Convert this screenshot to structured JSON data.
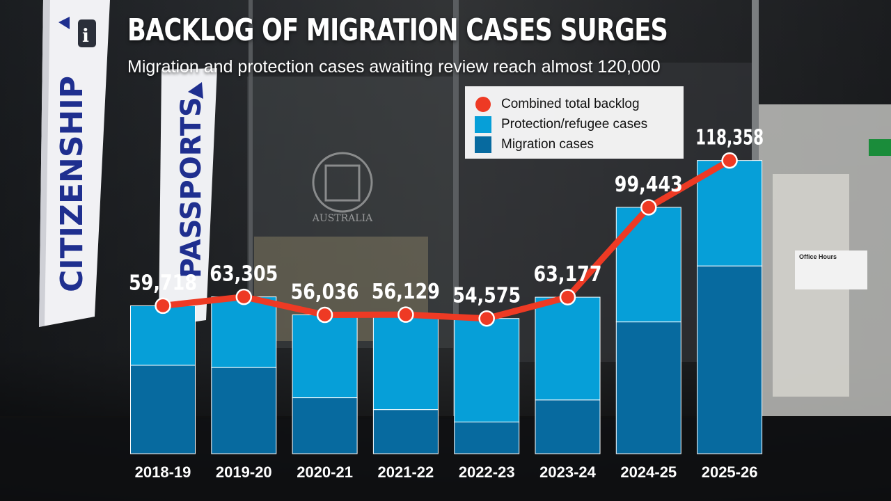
{
  "headline": "BACKLOG OF MIGRATION CASES SURGES",
  "subtitle": "Migration and protection cases awaiting review reach almost 120,000",
  "colors": {
    "combined": "#ee3a24",
    "protection": "#069fd8",
    "migration": "#076a9f"
  },
  "background": {
    "signs": [
      "CITIZENSHIP",
      "PASSPORTS"
    ],
    "crest_text": "AUSTRALIA",
    "notice_title": "Office Hours"
  },
  "chart_data": {
    "type": "bar",
    "stacked": true,
    "title": "BACKLOG OF MIGRATION CASES SURGES",
    "subtitle": "Migration and protection cases awaiting review reach almost 120,000",
    "categories": [
      "2018-19",
      "2019-20",
      "2020-21",
      "2021-22",
      "2022-23",
      "2023-24",
      "2024-25",
      "2025-26"
    ],
    "series": [
      {
        "name": "Migration cases",
        "type": "bar",
        "color": "#076a9f",
        "values": [
          35700,
          34800,
          22600,
          17800,
          12800,
          21700,
          53200,
          75800
        ]
      },
      {
        "name": "Protection/refugee cases",
        "type": "bar",
        "color": "#069fd8",
        "values": [
          24018,
          28505,
          33436,
          38329,
          41775,
          41477,
          46243,
          42558
        ]
      },
      {
        "name": "Combined total backlog",
        "type": "line",
        "color": "#ee3a24",
        "values": [
          59718,
          63305,
          56036,
          56129,
          54575,
          63177,
          99443,
          118358
        ]
      }
    ],
    "data_labels": [
      "59,718",
      "63,305",
      "56,036",
      "56,129",
      "54,575",
      "63,177",
      "99,443",
      "118,358"
    ],
    "ylim": [
      0,
      120000
    ],
    "grid": false,
    "legend": "top-right"
  }
}
